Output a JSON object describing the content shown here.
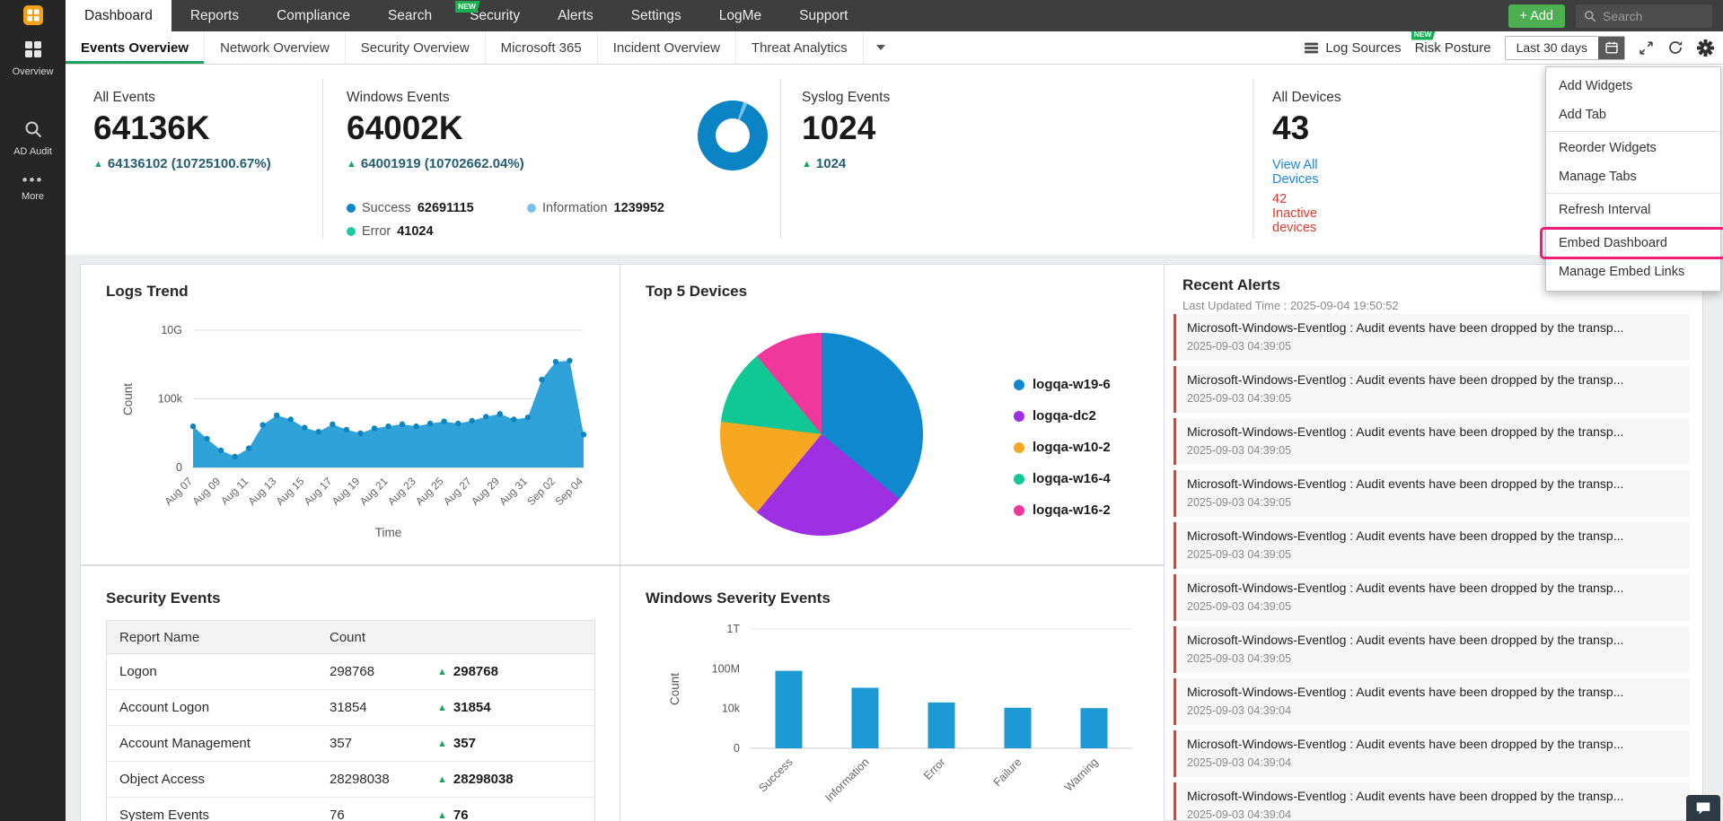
{
  "colors": {
    "chart_blue": "#1d9ad6",
    "accent_green": "#18b051",
    "alert_red": "#e2402f",
    "highlight_pink": "#f01d78",
    "link_blue": "#1d86d8"
  },
  "sidebar": {
    "items": [
      {
        "label": "Overview"
      },
      {
        "label": "AD Audit"
      },
      {
        "label": "More"
      }
    ]
  },
  "topnav": {
    "tabs": [
      {
        "label": "Dashboard"
      },
      {
        "label": "Reports"
      },
      {
        "label": "Compliance"
      },
      {
        "label": "Search"
      },
      {
        "label": "Security",
        "badge": "NEW"
      },
      {
        "label": "Alerts"
      },
      {
        "label": "Settings"
      },
      {
        "label": "LogMe"
      },
      {
        "label": "Support"
      }
    ],
    "add_button": "+ Add",
    "search_placeholder": "Search"
  },
  "subnav": {
    "tabs": [
      {
        "label": "Events Overview"
      },
      {
        "label": "Network Overview"
      },
      {
        "label": "Security Overview"
      },
      {
        "label": "Microsoft 365"
      },
      {
        "label": "Incident Overview"
      },
      {
        "label": "Threat Analytics"
      }
    ],
    "log_sources": "Log Sources",
    "risk_posture": "Risk Posture",
    "risk_badge": "NEW",
    "date_range": "Last 30 days"
  },
  "gear_menu": {
    "items": [
      {
        "label": "Add Widgets"
      },
      {
        "label": "Add Tab"
      },
      {
        "label": "Reorder Widgets"
      },
      {
        "label": "Manage Tabs"
      },
      {
        "label": "Refresh Interval"
      },
      {
        "label": "Embed Dashboard",
        "highlighted": true
      },
      {
        "label": "Manage Embed Links"
      }
    ]
  },
  "stats": {
    "all_events": {
      "title": "All Events",
      "value": "64136K",
      "delta": "64136102 (10725100.67%)"
    },
    "windows_events": {
      "title": "Windows Events",
      "value": "64002K",
      "delta": "64001919 (10702662.04%)",
      "legend": [
        {
          "label": "Success",
          "value": "62691115"
        },
        {
          "label": "Error",
          "value": "41024"
        },
        {
          "label": "Information",
          "value": "1239952"
        }
      ]
    },
    "syslog_events": {
      "title": "Syslog Events",
      "value": "1024",
      "delta": "1024"
    },
    "all_devices": {
      "title": "All Devices",
      "value": "43",
      "link": "View All Devices",
      "inactive": "42 Inactive devices"
    }
  },
  "panels": {
    "logs_trend": "Logs Trend",
    "top_devices": "Top 5 Devices",
    "security_events": "Security Events",
    "windows_severity": "Windows Severity Events",
    "recent_alerts": {
      "title": "Recent Alerts",
      "subtitle": "Last Updated Time : 2025-09-04 19:50:52"
    }
  },
  "security_table": {
    "headers": [
      "Report Name",
      "Count"
    ],
    "rows": [
      {
        "name": "Logon",
        "count": "298768",
        "delta": "298768"
      },
      {
        "name": "Account Logon",
        "count": "31854",
        "delta": "31854"
      },
      {
        "name": "Account Management",
        "count": "357",
        "delta": "357"
      },
      {
        "name": "Object Access",
        "count": "28298038",
        "delta": "28298038"
      },
      {
        "name": "System Events",
        "count": "76",
        "delta": "76"
      }
    ]
  },
  "alerts": [
    {
      "message": "Microsoft-Windows-Eventlog : Audit events have been dropped by the transp...",
      "time": "2025-09-03 04:39:05"
    },
    {
      "message": "Microsoft-Windows-Eventlog : Audit events have been dropped by the transp...",
      "time": "2025-09-03 04:39:05"
    },
    {
      "message": "Microsoft-Windows-Eventlog : Audit events have been dropped by the transp...",
      "time": "2025-09-03 04:39:05"
    },
    {
      "message": "Microsoft-Windows-Eventlog : Audit events have been dropped by the transp...",
      "time": "2025-09-03 04:39:05"
    },
    {
      "message": "Microsoft-Windows-Eventlog : Audit events have been dropped by the transp...",
      "time": "2025-09-03 04:39:05"
    },
    {
      "message": "Microsoft-Windows-Eventlog : Audit events have been dropped by the transp...",
      "time": "2025-09-03 04:39:05"
    },
    {
      "message": "Microsoft-Windows-Eventlog : Audit events have been dropped by the transp...",
      "time": "2025-09-03 04:39:05"
    },
    {
      "message": "Microsoft-Windows-Eventlog : Audit events have been dropped by the transp...",
      "time": "2025-09-03 04:39:04"
    },
    {
      "message": "Microsoft-Windows-Eventlog : Audit events have been dropped by the transp...",
      "time": "2025-09-03 04:39:04"
    },
    {
      "message": "Microsoft-Windows-Eventlog : Audit events have been dropped by the transp...",
      "time": "2025-09-03 04:39:04"
    }
  ],
  "chart_data": [
    {
      "id": "logs_trend",
      "type": "area",
      "title": "Logs Trend",
      "xlabel": "Time",
      "ylabel": "Count",
      "y_ticks": [
        {
          "label": "0",
          "value": 0
        },
        {
          "label": "100k",
          "value": 100000
        },
        {
          "label": "10G",
          "value": 10000000000
        }
      ],
      "x": [
        "Aug 07",
        "Aug 08",
        "Aug 09",
        "Aug 10",
        "Aug 11",
        "Aug 12",
        "Aug 13",
        "Aug 14",
        "Aug 15",
        "Aug 16",
        "Aug 17",
        "Aug 18",
        "Aug 19",
        "Aug 20",
        "Aug 21",
        "Aug 22",
        "Aug 23",
        "Aug 24",
        "Aug 25",
        "Aug 26",
        "Aug 27",
        "Aug 28",
        "Aug 29",
        "Aug 30",
        "Aug 31",
        "Sep 01",
        "Sep 02",
        "Sep 03",
        "Sep 04"
      ],
      "values": [
        60000,
        42000,
        25000,
        16000,
        28000,
        62000,
        76000,
        70000,
        58000,
        52000,
        63000,
        55000,
        50000,
        57000,
        60000,
        63000,
        60000,
        64000,
        67000,
        64000,
        68000,
        74000,
        78000,
        70000,
        73000,
        2500000,
        50000000,
        60000000,
        48000
      ],
      "color": "#1d9ad6",
      "grid": true,
      "legend": "none"
    },
    {
      "id": "top_devices",
      "type": "pie",
      "title": "Top 5 Devices",
      "legend": "right",
      "slices": [
        {
          "label": "logqa-w19-6",
          "percent": 36,
          "color": "#1088cf"
        },
        {
          "label": "logqa-dc2",
          "percent": 25,
          "color": "#9e2fe3"
        },
        {
          "label": "logqa-w10-2",
          "percent": 16,
          "color": "#f6a821"
        },
        {
          "label": "logqa-w16-4",
          "percent": 12,
          "color": "#10c893"
        },
        {
          "label": "logqa-w16-2",
          "percent": 11,
          "color": "#f0389c"
        }
      ]
    },
    {
      "id": "windows_events_donut",
      "type": "pie",
      "title": "Windows Events",
      "segments": [
        {
          "label": "Success",
          "value": 62691115,
          "color": "#0a84c4"
        },
        {
          "label": "Error",
          "value": 41024,
          "color": "#1fc8a7"
        },
        {
          "label": "Information",
          "value": 1239952,
          "color": "#74c0ea"
        }
      ]
    },
    {
      "id": "windows_severity",
      "type": "bar",
      "title": "Windows Severity Events",
      "ylabel": "Count",
      "xlabel": "",
      "y_ticks": [
        {
          "label": "0",
          "value": 0
        },
        {
          "label": "10k",
          "value": 10000
        },
        {
          "label": "100M",
          "value": 100000000
        },
        {
          "label": "1T",
          "value": 1000000000000
        }
      ],
      "categories": [
        "Success",
        "Information",
        "Error",
        "Failure",
        "Warning"
      ],
      "values": [
        62691115,
        1239952,
        41024,
        12000,
        11000
      ],
      "color": "#1d9ad6",
      "grid": true,
      "legend": "none"
    }
  ]
}
